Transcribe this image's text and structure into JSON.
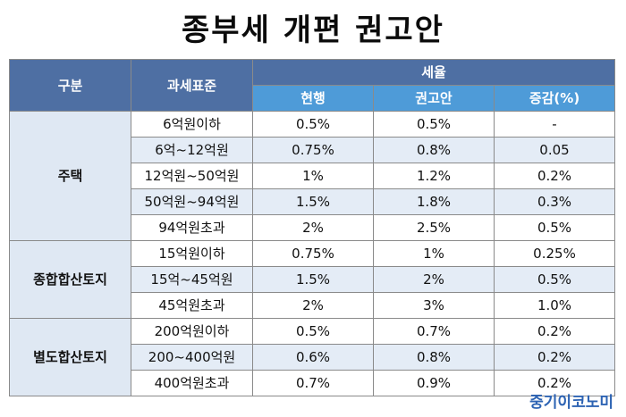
{
  "title": "종부세 개편 권고안",
  "header": {
    "category": "구분",
    "tax_base": "과세표준",
    "tax_rate": "세율",
    "current": "현행",
    "proposal": "권고안",
    "change": "증감(%)"
  },
  "groups": [
    {
      "name": "주택",
      "rows": [
        {
          "range": "6억원이하",
          "current": "0.5%",
          "proposal": "0.5%",
          "change": "-"
        },
        {
          "range": "6억~12억원",
          "current": "0.75%",
          "proposal": "0.8%",
          "change": "0.05"
        },
        {
          "range": "12억원~50억원",
          "current": "1%",
          "proposal": "1.2%",
          "change": "0.2%"
        },
        {
          "range": "50억원~94억원",
          "current": "1.5%",
          "proposal": "1.8%",
          "change": "0.3%"
        },
        {
          "range": "94억원초과",
          "current": "2%",
          "proposal": "2.5%",
          "change": "0.5%"
        }
      ]
    },
    {
      "name": "종합합산토지",
      "rows": [
        {
          "range": "15억원이하",
          "current": "0.75%",
          "proposal": "1%",
          "change": "0.25%"
        },
        {
          "range": "15억~45억원",
          "current": "1.5%",
          "proposal": "2%",
          "change": "0.5%"
        },
        {
          "range": "45억원초과",
          "current": "2%",
          "proposal": "3%",
          "change": "1.0%"
        }
      ]
    },
    {
      "name": "별도합산토지",
      "rows": [
        {
          "range": "200억원이하",
          "current": "0.5%",
          "proposal": "0.7%",
          "change": "0.2%"
        },
        {
          "range": "200~400억원",
          "current": "0.6%",
          "proposal": "0.8%",
          "change": "0.2%"
        },
        {
          "range": "400억원초과",
          "current": "0.7%",
          "proposal": "0.9%",
          "change": "0.2%"
        }
      ]
    }
  ],
  "brand": "중기이코노미"
}
